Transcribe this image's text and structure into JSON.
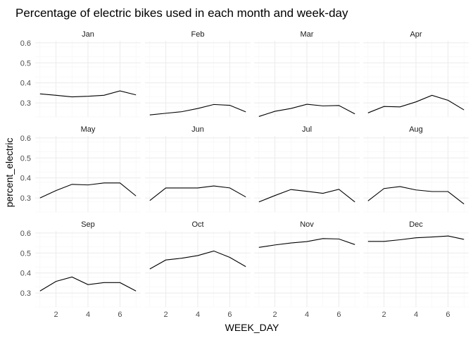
{
  "chart_data": {
    "type": "line",
    "title": "Percentage of electric bikes used in each month and week-day",
    "xlabel": "WEEK_DAY",
    "ylabel": "percent_electric",
    "x": [
      1,
      2,
      3,
      4,
      5,
      6,
      7
    ],
    "x_ticks": [
      "2",
      "4",
      "6"
    ],
    "y_ticks": [
      "0.3",
      "0.4",
      "0.5",
      "0.6"
    ],
    "ylim": [
      0.23,
      0.61
    ],
    "xlim": [
      0.7,
      7.3
    ],
    "layout": "facet grid, 4 columns x 3 rows, light grey grid, no legend",
    "colors": {
      "line": "#000000",
      "grid": "#ebebeb",
      "grid_minor": "#f3f3f3"
    },
    "panels": [
      {
        "label": "Jan",
        "values": [
          0.345,
          0.338,
          0.33,
          0.333,
          0.338,
          0.36,
          0.34
        ]
      },
      {
        "label": "Feb",
        "values": [
          0.24,
          0.248,
          0.256,
          0.272,
          0.292,
          0.288,
          0.255
        ]
      },
      {
        "label": "Mar",
        "values": [
          0.232,
          0.258,
          0.272,
          0.293,
          0.285,
          0.287,
          0.245
        ]
      },
      {
        "label": "Apr",
        "values": [
          0.25,
          0.282,
          0.28,
          0.305,
          0.338,
          0.313,
          0.265
        ]
      },
      {
        "label": "May",
        "values": [
          0.3,
          0.337,
          0.368,
          0.365,
          0.375,
          0.375,
          0.31
        ]
      },
      {
        "label": "Jun",
        "values": [
          0.287,
          0.35,
          0.35,
          0.35,
          0.36,
          0.35,
          0.305
        ]
      },
      {
        "label": "Jul",
        "values": [
          0.28,
          0.312,
          0.342,
          0.333,
          0.323,
          0.343,
          0.28
        ]
      },
      {
        "label": "Aug",
        "values": [
          0.285,
          0.347,
          0.357,
          0.34,
          0.332,
          0.332,
          0.27
        ]
      },
      {
        "label": "Sep",
        "values": [
          0.31,
          0.358,
          0.38,
          0.342,
          0.352,
          0.352,
          0.31
        ]
      },
      {
        "label": "Oct",
        "values": [
          0.42,
          0.465,
          0.474,
          0.487,
          0.51,
          0.478,
          0.432
        ]
      },
      {
        "label": "Nov",
        "values": [
          0.528,
          0.54,
          0.55,
          0.557,
          0.572,
          0.57,
          0.542
        ]
      },
      {
        "label": "Dec",
        "values": [
          0.558,
          0.558,
          0.566,
          0.576,
          0.58,
          0.585,
          0.568
        ]
      }
    ]
  }
}
